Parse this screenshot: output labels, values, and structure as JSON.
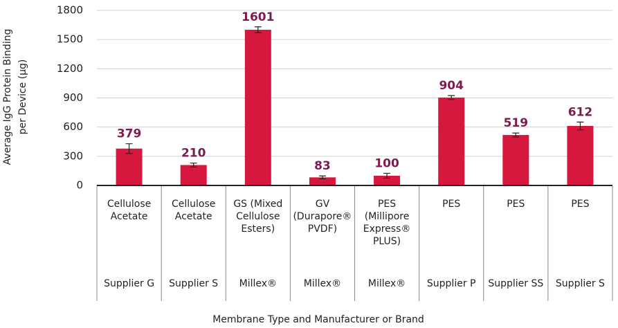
{
  "chart_data": {
    "type": "bar",
    "y_label": "Average IgG Protein Binding\nper Device (µg)",
    "x_label": "Membrane Type and Manufacturer or Brand",
    "categories": [
      "Cellulose\nAcetate",
      "Cellulose\nAcetate",
      "GS (Mixed\nCellulose\nEsters)",
      "GV\n(Durapore®\nPVDF)",
      "PES\n(Millipore\nExpress®\nPLUS)",
      "PES",
      "PES",
      "PES"
    ],
    "suppliers": [
      "Supplier G",
      "Supplier S",
      "Millex®",
      "Millex®",
      "Millex®",
      "Supplier P",
      "Supplier SS",
      "Supplier S"
    ],
    "values": [
      379,
      210,
      1601,
      83,
      100,
      904,
      519,
      612
    ],
    "errors": [
      50,
      20,
      30,
      15,
      25,
      20,
      20,
      40
    ],
    "color": "#d7183e",
    "label_color": "#7b1c4e",
    "ylim": [
      0,
      1800
    ],
    "yticks": [
      0,
      300,
      600,
      900,
      1200,
      1500,
      1800
    ],
    "grid": true
  }
}
